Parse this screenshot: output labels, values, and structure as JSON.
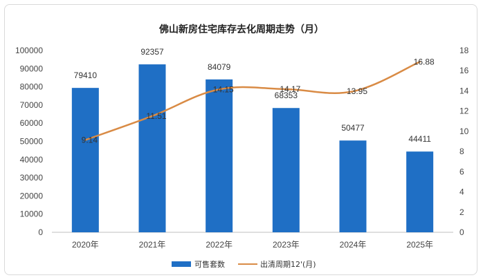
{
  "chart_data": {
    "type": "bar",
    "title": "佛山新房住宅库存去化周期走势（月）",
    "categories": [
      "2020年",
      "2021年",
      "2022年",
      "2023年",
      "2024年",
      "2025年"
    ],
    "series": [
      {
        "name": "可售套数",
        "type": "bar",
        "axis": "left",
        "color": "#1f6fc5",
        "values": [
          79410,
          92357,
          84079,
          68353,
          50477,
          44411
        ],
        "labels": [
          "79410",
          "92357",
          "84079",
          "68353",
          "50477",
          "44411"
        ]
      },
      {
        "name": "出清周期12'(月)",
        "type": "line",
        "axis": "right",
        "color": "#d98b45",
        "values": [
          9.14,
          11.51,
          14.15,
          14.17,
          13.95,
          16.88
        ],
        "labels": [
          "9.14",
          "11.51",
          "14.15",
          "14.17",
          "13.95",
          "16.88"
        ]
      }
    ],
    "ylim_left": [
      0,
      100000
    ],
    "yticks_left": [
      "0",
      "10000",
      "20000",
      "30000",
      "40000",
      "50000",
      "60000",
      "70000",
      "80000",
      "90000",
      "100000"
    ],
    "ylim_right": [
      0,
      18
    ],
    "yticks_right": [
      "0",
      "2",
      "4",
      "6",
      "8",
      "10",
      "12",
      "14",
      "16",
      "18"
    ],
    "legend_position": "bottom",
    "grid": false
  }
}
